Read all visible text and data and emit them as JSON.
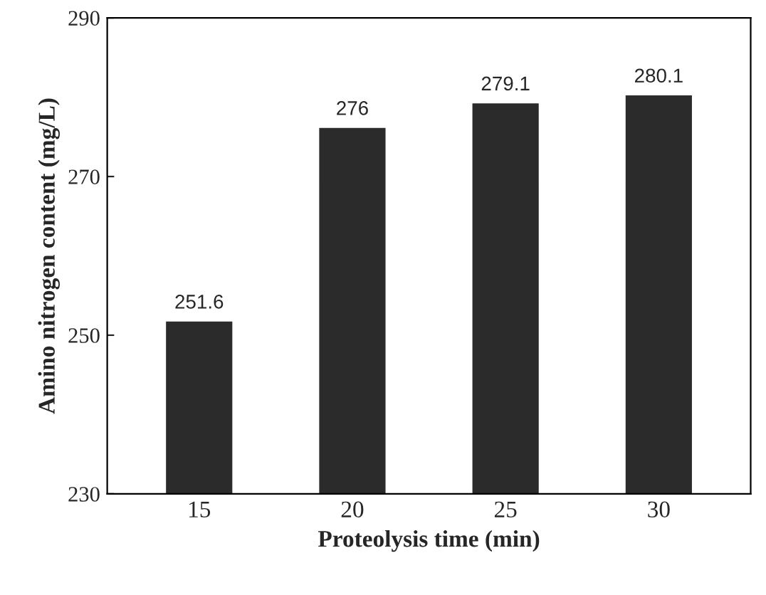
{
  "chart_data": {
    "type": "bar",
    "xlabel": "Proteolysis time (min)",
    "ylabel": "Amino nitrogen content (mg/L)",
    "categories": [
      "15",
      "20",
      "25",
      "30"
    ],
    "values": [
      251.6,
      276,
      279.1,
      280.1
    ],
    "color": "#2b2b2b",
    "ylim": [
      230,
      290
    ],
    "yticks": [
      230,
      250,
      270,
      290
    ],
    "data_labels": true,
    "grid": false,
    "legend": false
  }
}
